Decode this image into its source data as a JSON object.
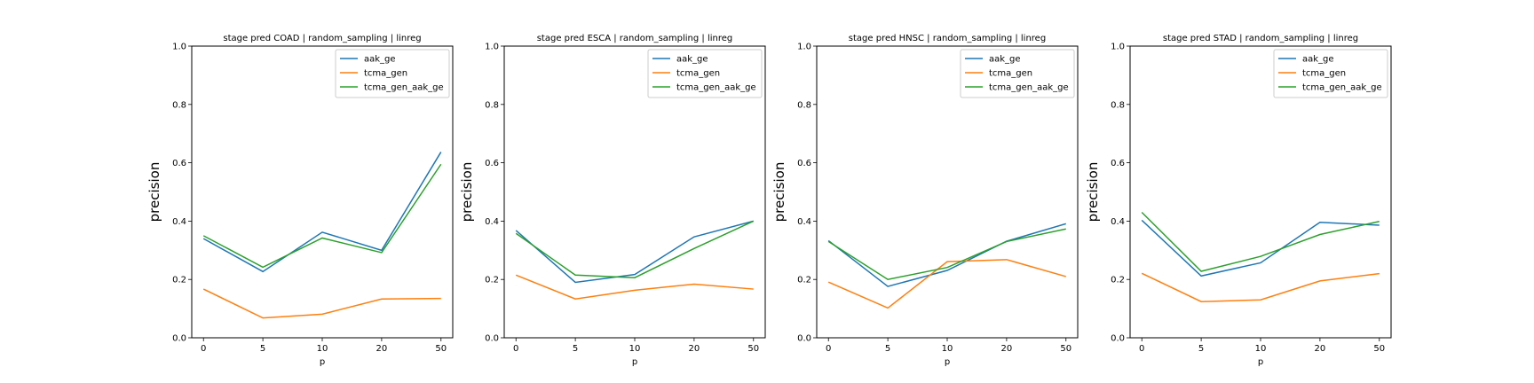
{
  "chart_data": [
    {
      "type": "line",
      "title": "stage pred COAD | random_sampling | linreg",
      "xlabel": "p",
      "ylabel": "precision",
      "categories": [
        "0",
        "5",
        "10",
        "20",
        "50"
      ],
      "ylim": [
        0,
        1.0
      ],
      "yticks": [
        "0.0",
        "0.2",
        "0.4",
        "0.6",
        "0.8",
        "1.0"
      ],
      "legend_position": "top-right",
      "series": [
        {
          "name": "aak_ge",
          "color": "#1f77b4",
          "values": [
            0.34,
            0.227,
            0.362,
            0.3,
            0.637
          ]
        },
        {
          "name": "tcma_gen",
          "color": "#ff7f0e",
          "values": [
            0.167,
            0.068,
            0.081,
            0.133,
            0.135
          ]
        },
        {
          "name": "tcma_gen_aak_ge",
          "color": "#2ca02c",
          "values": [
            0.35,
            0.242,
            0.342,
            0.292,
            0.595
          ]
        }
      ]
    },
    {
      "type": "line",
      "title": "stage pred ESCA | random_sampling | linreg",
      "xlabel": "p",
      "ylabel": "precision",
      "categories": [
        "0",
        "5",
        "10",
        "20",
        "50"
      ],
      "ylim": [
        0,
        1.0
      ],
      "yticks": [
        "0.0",
        "0.2",
        "0.4",
        "0.6",
        "0.8",
        "1.0"
      ],
      "legend_position": "top-right",
      "series": [
        {
          "name": "aak_ge",
          "color": "#1f77b4",
          "values": [
            0.368,
            0.19,
            0.217,
            0.346,
            0.4
          ]
        },
        {
          "name": "tcma_gen",
          "color": "#ff7f0e",
          "values": [
            0.215,
            0.133,
            0.163,
            0.184,
            0.167
          ]
        },
        {
          "name": "tcma_gen_aak_ge",
          "color": "#2ca02c",
          "values": [
            0.358,
            0.215,
            0.206,
            0.306,
            0.4
          ]
        }
      ]
    },
    {
      "type": "line",
      "title": "stage pred HNSC | random_sampling | linreg",
      "xlabel": "p",
      "ylabel": "precision",
      "categories": [
        "0",
        "5",
        "10",
        "20",
        "50"
      ],
      "ylim": [
        0,
        1.0
      ],
      "yticks": [
        "0.0",
        "0.2",
        "0.4",
        "0.6",
        "0.8",
        "1.0"
      ],
      "legend_position": "top-right",
      "series": [
        {
          "name": "aak_ge",
          "color": "#1f77b4",
          "values": [
            0.333,
            0.176,
            0.231,
            0.331,
            0.391
          ]
        },
        {
          "name": "tcma_gen",
          "color": "#ff7f0e",
          "values": [
            0.191,
            0.102,
            0.261,
            0.268,
            0.21
          ]
        },
        {
          "name": "tcma_gen_aak_ge",
          "color": "#2ca02c",
          "values": [
            0.33,
            0.2,
            0.241,
            0.33,
            0.373
          ]
        }
      ]
    },
    {
      "type": "line",
      "title": "stage pred STAD | random_sampling | linreg",
      "xlabel": "p",
      "ylabel": "precision",
      "categories": [
        "0",
        "5",
        "10",
        "20",
        "50"
      ],
      "ylim": [
        0,
        1.0
      ],
      "yticks": [
        "0.0",
        "0.2",
        "0.4",
        "0.6",
        "0.8",
        "1.0"
      ],
      "legend_position": "top-right",
      "series": [
        {
          "name": "aak_ge",
          "color": "#1f77b4",
          "values": [
            0.403,
            0.212,
            0.257,
            0.396,
            0.386
          ]
        },
        {
          "name": "tcma_gen",
          "color": "#ff7f0e",
          "values": [
            0.221,
            0.124,
            0.13,
            0.195,
            0.22
          ]
        },
        {
          "name": "tcma_gen_aak_ge",
          "color": "#2ca02c",
          "values": [
            0.43,
            0.228,
            0.279,
            0.354,
            0.399
          ]
        }
      ]
    }
  ]
}
